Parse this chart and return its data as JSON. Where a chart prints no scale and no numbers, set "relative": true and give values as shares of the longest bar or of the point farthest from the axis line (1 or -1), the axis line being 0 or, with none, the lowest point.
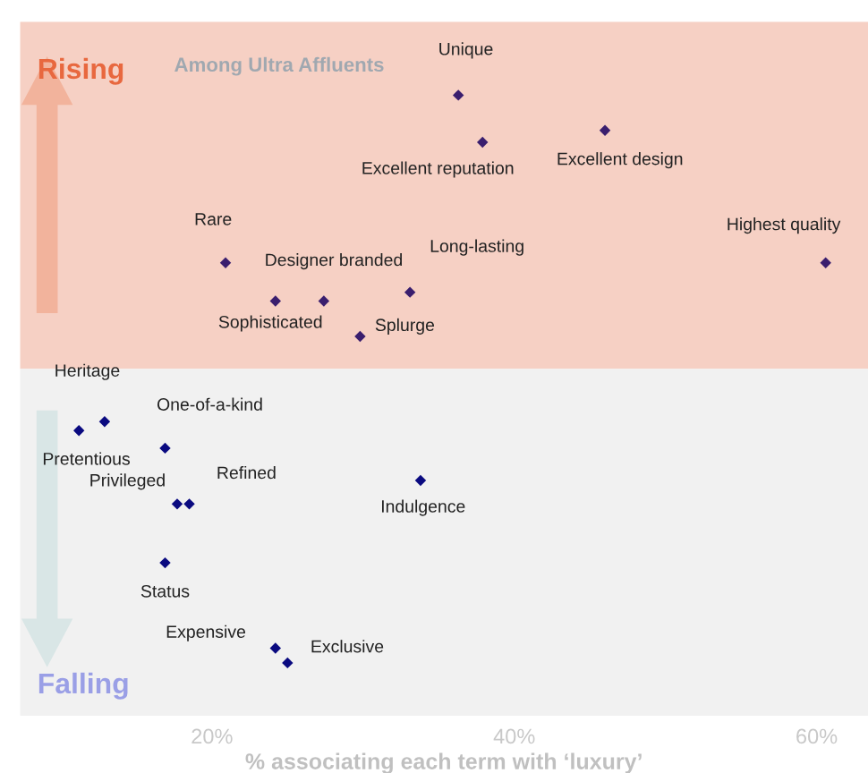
{
  "chart_data": {
    "type": "scatter",
    "title": "Among Ultra Affluents",
    "xlabel": "% associating each term with ‘luxury’",
    "relative": true,
    "xlim": [
      7.3,
      63.4
    ],
    "xticks": [
      {
        "value": 20,
        "label": "20%"
      },
      {
        "value": 40,
        "label": "40%"
      },
      {
        "value": 60,
        "label": "60%"
      }
    ],
    "marker": "diamond",
    "grid": false,
    "series": [
      {
        "color": "#3a1e6e",
        "x": [
          36.3,
          37.9,
          46.0,
          20.9,
          27.4,
          24.2,
          33.1,
          29.8,
          60.6
        ],
        "values": [
          0.93,
          0.77,
          0.81,
          0.36,
          0.23,
          0.23,
          0.26,
          0.11,
          0.36
        ]
      },
      {
        "color": "#0a0a80",
        "x": [
          12.9,
          11.2,
          16.9,
          17.7,
          18.5,
          33.8,
          16.9,
          24.2,
          25.0
        ],
        "values": [
          -0.18,
          -0.21,
          -0.27,
          -0.46,
          -0.46,
          -0.38,
          -0.66,
          -0.95,
          -1
        ]
      }
    ],
    "bands": [
      {
        "axis": "y",
        "from": 0,
        "to": 1.18,
        "label": "Rising",
        "color": "#f6d0c4"
      },
      {
        "axis": "y",
        "from": -1.18,
        "to": 0,
        "label": "Falling",
        "color": "#f1f1f1"
      }
    ],
    "annotations": [
      {
        "text": "Unique",
        "x": 36.3,
        "y": 0.93
      },
      {
        "text": "Excellent reputation",
        "x": 37.9,
        "y": 0.77
      },
      {
        "text": "Excellent design",
        "x": 46.0,
        "y": 0.81
      },
      {
        "text": "Rare",
        "x": 20.9,
        "y": 0.36
      },
      {
        "text": "Designer branded",
        "x": 27.4,
        "y": 0.23
      },
      {
        "text": "Sophisticated",
        "x": 24.2,
        "y": 0.23
      },
      {
        "text": "Long-lasting",
        "x": 33.1,
        "y": 0.26
      },
      {
        "text": "Splurge",
        "x": 29.8,
        "y": 0.11
      },
      {
        "text": "Highest quality",
        "x": 60.6,
        "y": 0.36
      },
      {
        "text": "Heritage",
        "x": 12.9,
        "y": -0.18
      },
      {
        "text": "Pretentious",
        "x": 11.2,
        "y": -0.21
      },
      {
        "text": "One-of-a-kind",
        "x": 16.9,
        "y": -0.27
      },
      {
        "text": "Privileged",
        "x": 17.7,
        "y": -0.46
      },
      {
        "text": "Refined",
        "x": 18.5,
        "y": -0.46
      },
      {
        "text": "Indulgence",
        "x": 33.8,
        "y": -0.38
      },
      {
        "text": "Status",
        "x": 16.9,
        "y": -0.66
      },
      {
        "text": "Expensive",
        "x": 24.2,
        "y": -0.95
      },
      {
        "text": "Exclusive",
        "x": 25.0,
        "y": -1
      }
    ]
  }
}
